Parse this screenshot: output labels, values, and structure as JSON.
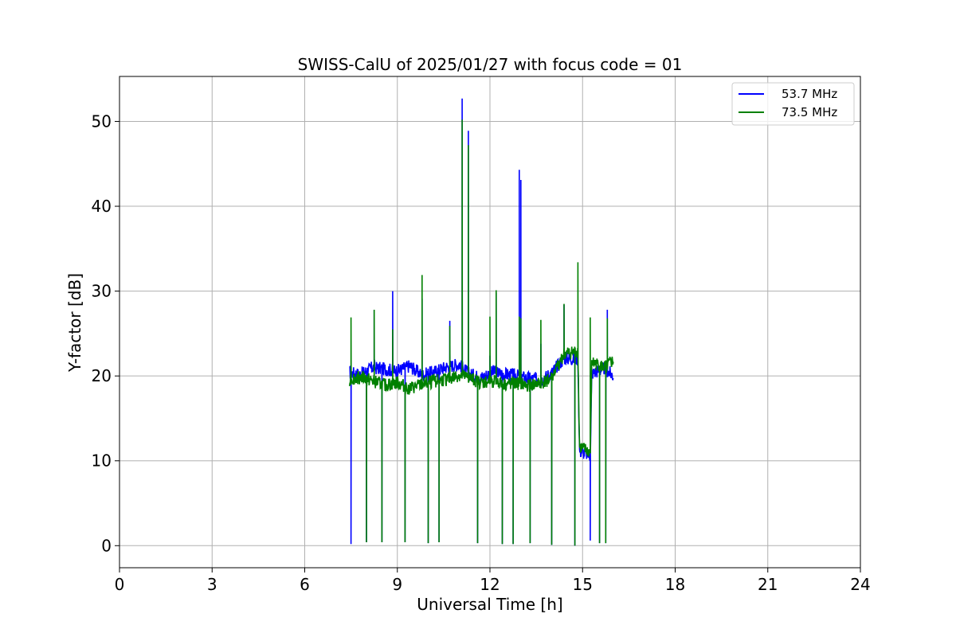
{
  "chart_data": {
    "type": "line",
    "title": "SWISS-CalU of 2025/01/27 with focus code = 01",
    "xlabel": "Universal Time [h]",
    "ylabel": "Y-factor [dB]",
    "xlim": [
      0,
      24
    ],
    "ylim": [
      -2.6,
      55.3
    ],
    "xticks": [
      0,
      3,
      6,
      9,
      12,
      15,
      18,
      21,
      24
    ],
    "yticks": [
      0,
      10,
      20,
      30,
      40,
      50
    ],
    "grid": true,
    "legend_position": "top-right",
    "colors": {
      "series_1": "#0000ff",
      "series_2": "#008000"
    },
    "series": [
      {
        "name": "53.7 MHz",
        "color": "#0000ff",
        "base": [
          [
            7.45,
            20.4
          ],
          [
            7.8,
            20.2
          ],
          [
            8.2,
            21.0
          ],
          [
            8.6,
            20.8
          ],
          [
            9.0,
            20.6
          ],
          [
            9.4,
            21.2
          ],
          [
            9.8,
            20.1
          ],
          [
            10.2,
            20.5
          ],
          [
            10.6,
            21.1
          ],
          [
            11.0,
            21.4
          ],
          [
            11.3,
            20.3
          ],
          [
            11.7,
            19.8
          ],
          [
            12.1,
            20.5
          ],
          [
            12.5,
            20.2
          ],
          [
            12.9,
            20.0
          ],
          [
            13.3,
            19.7
          ],
          [
            13.7,
            19.6
          ],
          [
            14.0,
            20.4
          ],
          [
            14.4,
            22.1
          ],
          [
            14.85,
            22.0
          ],
          [
            14.9,
            11.2
          ],
          [
            15.25,
            10.6
          ],
          [
            15.3,
            20.3
          ],
          [
            15.7,
            20.9
          ],
          [
            16.0,
            20.0
          ]
        ],
        "spikes": [
          [
            7.5,
            0.2
          ],
          [
            8.0,
            0.4
          ],
          [
            8.25,
            27.8
          ],
          [
            8.5,
            0.4
          ],
          [
            8.85,
            30.0
          ],
          [
            9.25,
            0.4
          ],
          [
            9.8,
            29.1
          ],
          [
            10.0,
            0.3
          ],
          [
            10.35,
            0.4
          ],
          [
            10.7,
            26.5
          ],
          [
            11.1,
            52.7
          ],
          [
            11.3,
            48.9
          ],
          [
            11.6,
            0.3
          ],
          [
            12.0,
            22.4
          ],
          [
            12.2,
            29.8
          ],
          [
            12.4,
            0.2
          ],
          [
            12.75,
            0.2
          ],
          [
            12.95,
            44.3
          ],
          [
            13.0,
            43.1
          ],
          [
            13.3,
            0.3
          ],
          [
            13.65,
            23.8
          ],
          [
            14.0,
            0.1
          ],
          [
            14.4,
            28.4
          ],
          [
            14.75,
            0.0
          ],
          [
            15.25,
            0.6
          ],
          [
            15.55,
            0.3
          ],
          [
            15.75,
            0.3
          ],
          [
            15.8,
            27.8
          ]
        ]
      },
      {
        "name": "73.5 MHz",
        "color": "#008000",
        "base": [
          [
            7.45,
            19.6
          ],
          [
            7.8,
            19.9
          ],
          [
            8.2,
            19.4
          ],
          [
            8.6,
            18.9
          ],
          [
            9.0,
            19.2
          ],
          [
            9.4,
            18.5
          ],
          [
            9.8,
            19.0
          ],
          [
            10.2,
            19.4
          ],
          [
            10.6,
            19.6
          ],
          [
            11.0,
            20.1
          ],
          [
            11.3,
            19.8
          ],
          [
            11.7,
            19.2
          ],
          [
            12.1,
            19.4
          ],
          [
            12.5,
            19.0
          ],
          [
            12.9,
            19.1
          ],
          [
            13.3,
            18.9
          ],
          [
            13.7,
            19.2
          ],
          [
            14.0,
            19.8
          ],
          [
            14.4,
            22.6
          ],
          [
            14.85,
            22.9
          ],
          [
            14.9,
            11.6
          ],
          [
            15.25,
            11.0
          ],
          [
            15.3,
            21.6
          ],
          [
            15.7,
            21.0
          ],
          [
            16.0,
            21.8
          ]
        ],
        "spikes": [
          [
            7.5,
            26.9
          ],
          [
            8.0,
            0.4
          ],
          [
            8.25,
            27.8
          ],
          [
            8.5,
            0.4
          ],
          [
            8.85,
            25.5
          ],
          [
            9.25,
            0.4
          ],
          [
            9.8,
            31.9
          ],
          [
            10.0,
            0.3
          ],
          [
            10.35,
            0.4
          ],
          [
            10.7,
            25.9
          ],
          [
            11.1,
            50.2
          ],
          [
            11.3,
            47.2
          ],
          [
            11.6,
            0.3
          ],
          [
            12.0,
            27.0
          ],
          [
            12.2,
            30.1
          ],
          [
            12.4,
            0.2
          ],
          [
            12.75,
            0.2
          ],
          [
            12.95,
            27.0
          ],
          [
            13.0,
            26.8
          ],
          [
            13.3,
            0.3
          ],
          [
            13.65,
            26.6
          ],
          [
            14.0,
            0.1
          ],
          [
            14.4,
            28.5
          ],
          [
            14.75,
            0.0
          ],
          [
            14.85,
            33.4
          ],
          [
            15.25,
            26.9
          ],
          [
            15.55,
            0.3
          ],
          [
            15.75,
            0.3
          ],
          [
            15.8,
            26.8
          ]
        ]
      }
    ]
  }
}
